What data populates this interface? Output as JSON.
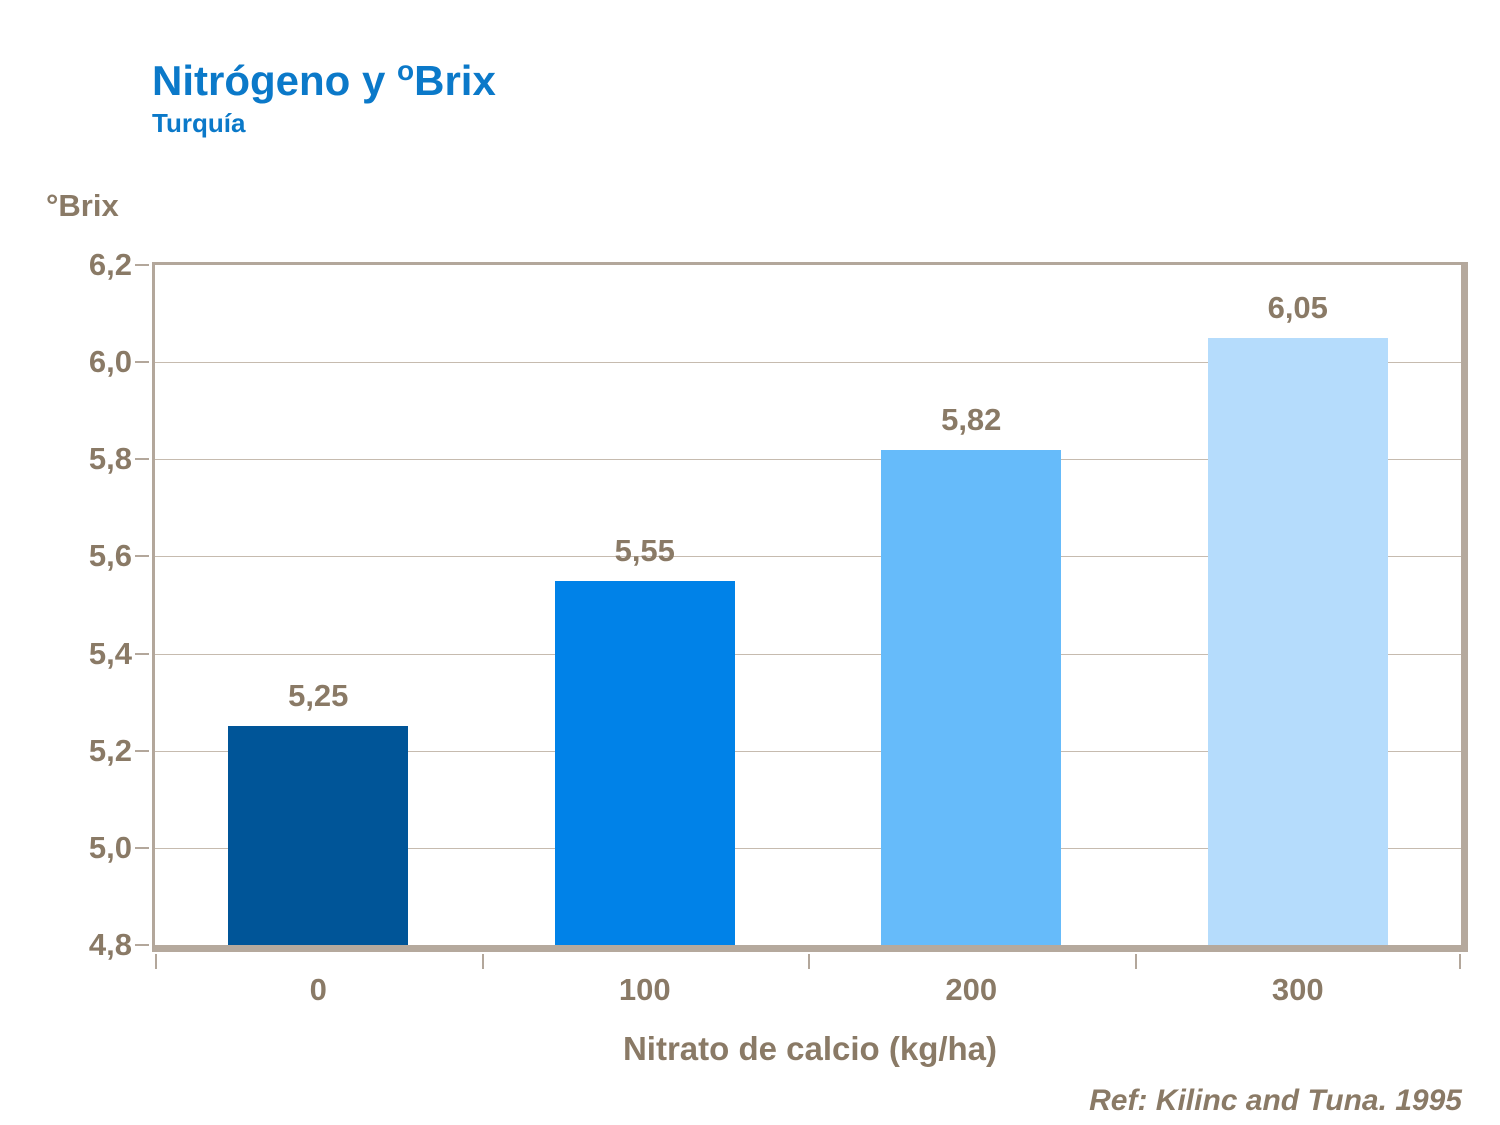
{
  "title": {
    "prefix": "Nitrógeno y ",
    "superscript": "o",
    "suffix": "Brix",
    "subtitle": "Turquía",
    "color": "#0b79c9"
  },
  "axis": {
    "y_title": "°Brix",
    "x_title": "Nitrato de calcio (kg/ha)"
  },
  "footer": {
    "reference": "Ref: Kilinc and Tuna. 1995"
  },
  "chart_data": {
    "type": "bar",
    "title": "Nitrógeno y ºBrix",
    "subtitle": "Turquía",
    "xlabel": "Nitrato de calcio (kg/ha)",
    "ylabel": "°Brix",
    "categories": [
      "0",
      "100",
      "200",
      "300"
    ],
    "values": [
      5.25,
      5.55,
      5.82,
      6.05
    ],
    "value_labels": [
      "5,25",
      "5,55",
      "5,82",
      "6,05"
    ],
    "bar_colors": [
      "#005598",
      "#0082e8",
      "#66bbfa",
      "#b5dcfc"
    ],
    "ylim": [
      4.8,
      6.2
    ],
    "ytick_values": [
      4.8,
      5.0,
      5.2,
      5.4,
      5.6,
      5.8,
      6.0,
      6.2
    ],
    "ytick_labels": [
      "4,8",
      "5,0",
      "5,2",
      "5,4",
      "5,6",
      "5,8",
      "6,0",
      "6,2"
    ],
    "grid": true,
    "legend": "none",
    "text_color": "#8a7a66",
    "grid_color": "#c6bbaf",
    "frame_color": "#b3a79b",
    "reference": "Ref: Kilinc and Tuna. 1995"
  }
}
